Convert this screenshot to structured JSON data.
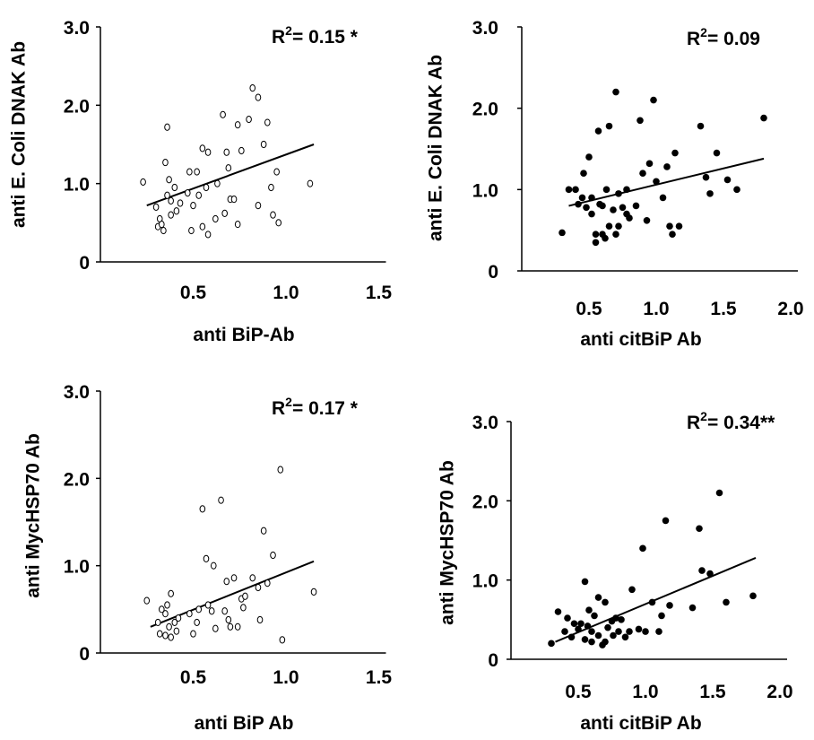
{
  "chart_data": [
    {
      "type": "scatter",
      "marker": "open",
      "xlabel": "anti BiP-Ab",
      "ylabel": "anti E. Coli DNAK Ab",
      "annotation": {
        "prefix": "R",
        "sup": "2",
        "text": "= 0.15 *"
      },
      "xticks": [
        "0.5",
        "1.0",
        "1.5"
      ],
      "yticks": [
        "0",
        "1.0",
        "2.0",
        "3.0"
      ],
      "xlim": [
        0,
        1.5
      ],
      "ylim": [
        0,
        3.0
      ],
      "trendline": {
        "x": [
          0.25,
          1.15
        ],
        "y": [
          0.72,
          1.5
        ]
      },
      "points": [
        [
          0.23,
          1.02
        ],
        [
          0.3,
          0.7
        ],
        [
          0.31,
          0.45
        ],
        [
          0.32,
          0.55
        ],
        [
          0.33,
          0.48
        ],
        [
          0.34,
          0.4
        ],
        [
          0.35,
          1.27
        ],
        [
          0.36,
          0.85
        ],
        [
          0.36,
          1.72
        ],
        [
          0.37,
          1.05
        ],
        [
          0.38,
          0.6
        ],
        [
          0.38,
          0.78
        ],
        [
          0.4,
          0.95
        ],
        [
          0.41,
          0.65
        ],
        [
          0.43,
          0.75
        ],
        [
          0.47,
          0.88
        ],
        [
          0.48,
          1.15
        ],
        [
          0.49,
          0.4
        ],
        [
          0.5,
          0.72
        ],
        [
          0.52,
          1.15
        ],
        [
          0.53,
          0.85
        ],
        [
          0.55,
          1.45
        ],
        [
          0.55,
          0.45
        ],
        [
          0.57,
          0.95
        ],
        [
          0.58,
          1.4
        ],
        [
          0.58,
          0.35
        ],
        [
          0.62,
          0.55
        ],
        [
          0.63,
          1.0
        ],
        [
          0.66,
          1.88
        ],
        [
          0.67,
          0.62
        ],
        [
          0.68,
          1.4
        ],
        [
          0.69,
          1.2
        ],
        [
          0.7,
          0.8
        ],
        [
          0.72,
          0.8
        ],
        [
          0.74,
          1.75
        ],
        [
          0.74,
          0.48
        ],
        [
          0.76,
          1.42
        ],
        [
          0.8,
          1.82
        ],
        [
          0.82,
          2.22
        ],
        [
          0.85,
          2.1
        ],
        [
          0.85,
          0.72
        ],
        [
          0.88,
          1.5
        ],
        [
          0.9,
          1.78
        ],
        [
          0.92,
          0.95
        ],
        [
          0.93,
          0.6
        ],
        [
          0.95,
          1.15
        ],
        [
          0.96,
          0.5
        ],
        [
          1.13,
          1.0
        ]
      ]
    },
    {
      "type": "scatter",
      "marker": "filled",
      "xlabel": "anti citBiP Ab",
      "ylabel": "anti E. Coli DNAK Ab",
      "annotation": {
        "prefix": "R",
        "sup": "2",
        "text": "= 0.09"
      },
      "xticks": [
        "0.5",
        "1.0",
        "1.5",
        "2.0"
      ],
      "yticks": [
        "0",
        "1.0",
        "2.0",
        "3.0"
      ],
      "xlim": [
        0,
        2.0
      ],
      "ylim": [
        0,
        3.0
      ],
      "trendline": {
        "x": [
          0.35,
          1.8
        ],
        "y": [
          0.8,
          1.38
        ]
      },
      "points": [
        [
          0.3,
          0.47
        ],
        [
          0.35,
          1.0
        ],
        [
          0.4,
          1.0
        ],
        [
          0.42,
          0.82
        ],
        [
          0.45,
          0.9
        ],
        [
          0.46,
          1.2
        ],
        [
          0.48,
          0.78
        ],
        [
          0.5,
          1.4
        ],
        [
          0.52,
          0.9
        ],
        [
          0.52,
          0.7
        ],
        [
          0.55,
          0.45
        ],
        [
          0.55,
          0.35
        ],
        [
          0.57,
          1.72
        ],
        [
          0.58,
          0.82
        ],
        [
          0.6,
          0.45
        ],
        [
          0.6,
          0.8
        ],
        [
          0.62,
          0.4
        ],
        [
          0.63,
          1.0
        ],
        [
          0.65,
          1.78
        ],
        [
          0.65,
          0.55
        ],
        [
          0.68,
          0.75
        ],
        [
          0.7,
          0.45
        ],
        [
          0.7,
          2.2
        ],
        [
          0.72,
          0.55
        ],
        [
          0.72,
          0.95
        ],
        [
          0.75,
          0.78
        ],
        [
          0.78,
          0.7
        ],
        [
          0.78,
          1.0
        ],
        [
          0.8,
          0.65
        ],
        [
          0.85,
          0.8
        ],
        [
          0.88,
          1.85
        ],
        [
          0.9,
          1.2
        ],
        [
          0.93,
          0.62
        ],
        [
          0.95,
          1.32
        ],
        [
          0.98,
          2.1
        ],
        [
          1.0,
          1.1
        ],
        [
          1.05,
          0.9
        ],
        [
          1.08,
          1.28
        ],
        [
          1.1,
          0.55
        ],
        [
          1.12,
          0.45
        ],
        [
          1.14,
          1.45
        ],
        [
          1.17,
          0.55
        ],
        [
          1.33,
          1.78
        ],
        [
          1.37,
          1.15
        ],
        [
          1.4,
          0.95
        ],
        [
          1.45,
          1.45
        ],
        [
          1.53,
          1.12
        ],
        [
          1.6,
          1.0
        ],
        [
          1.8,
          1.88
        ]
      ]
    },
    {
      "type": "scatter",
      "marker": "open",
      "xlabel": "anti BiP Ab",
      "ylabel": "anti MycHSP70 Ab",
      "annotation": {
        "prefix": "R",
        "sup": "2",
        "text": "= 0.17 *"
      },
      "xticks": [
        "0.5",
        "1.0",
        "1.5"
      ],
      "yticks": [
        "0",
        "1.0",
        "2.0",
        "3.0"
      ],
      "xlim": [
        0,
        1.5
      ],
      "ylim": [
        0,
        3.0
      ],
      "trendline": {
        "x": [
          0.27,
          1.15
        ],
        "y": [
          0.3,
          1.05
        ]
      },
      "points": [
        [
          0.25,
          0.6
        ],
        [
          0.31,
          0.35
        ],
        [
          0.32,
          0.22
        ],
        [
          0.33,
          0.5
        ],
        [
          0.35,
          0.45
        ],
        [
          0.35,
          0.2
        ],
        [
          0.36,
          0.55
        ],
        [
          0.37,
          0.3
        ],
        [
          0.38,
          0.68
        ],
        [
          0.38,
          0.18
        ],
        [
          0.4,
          0.35
        ],
        [
          0.41,
          0.25
        ],
        [
          0.42,
          0.4
        ],
        [
          0.48,
          0.45
        ],
        [
          0.5,
          0.22
        ],
        [
          0.52,
          0.35
        ],
        [
          0.53,
          0.5
        ],
        [
          0.55,
          1.65
        ],
        [
          0.57,
          1.08
        ],
        [
          0.58,
          0.55
        ],
        [
          0.6,
          0.48
        ],
        [
          0.61,
          1.0
        ],
        [
          0.62,
          0.28
        ],
        [
          0.65,
          1.75
        ],
        [
          0.67,
          0.48
        ],
        [
          0.68,
          0.82
        ],
        [
          0.69,
          0.38
        ],
        [
          0.7,
          0.3
        ],
        [
          0.72,
          0.86
        ],
        [
          0.74,
          0.3
        ],
        [
          0.76,
          0.62
        ],
        [
          0.77,
          0.52
        ],
        [
          0.78,
          0.65
        ],
        [
          0.82,
          0.86
        ],
        [
          0.85,
          0.75
        ],
        [
          0.86,
          0.38
        ],
        [
          0.88,
          1.4
        ],
        [
          0.9,
          0.8
        ],
        [
          0.93,
          1.12
        ],
        [
          0.97,
          2.1
        ],
        [
          0.98,
          0.15
        ],
        [
          1.15,
          0.7
        ]
      ]
    },
    {
      "type": "scatter",
      "marker": "filled",
      "xlabel": "anti citBiP Ab",
      "ylabel": "anti MycHSP70 Ab",
      "annotation": {
        "prefix": "R",
        "sup": "2",
        "text": "= 0.34**"
      },
      "xticks": [
        "0.5",
        "1.0",
        "1.5",
        "2.0"
      ],
      "yticks": [
        "0",
        "1.0",
        "2.0",
        "3.0"
      ],
      "xlim": [
        0,
        2.0
      ],
      "ylim": [
        0,
        3.0
      ],
      "trendline": {
        "x": [
          0.33,
          1.82
        ],
        "y": [
          0.22,
          1.28
        ]
      },
      "points": [
        [
          0.3,
          0.2
        ],
        [
          0.35,
          0.6
        ],
        [
          0.4,
          0.35
        ],
        [
          0.42,
          0.52
        ],
        [
          0.45,
          0.28
        ],
        [
          0.47,
          0.45
        ],
        [
          0.5,
          0.38
        ],
        [
          0.52,
          0.45
        ],
        [
          0.55,
          0.98
        ],
        [
          0.55,
          0.25
        ],
        [
          0.57,
          0.42
        ],
        [
          0.58,
          0.62
        ],
        [
          0.6,
          0.35
        ],
        [
          0.6,
          0.22
        ],
        [
          0.62,
          0.55
        ],
        [
          0.65,
          0.3
        ],
        [
          0.65,
          0.78
        ],
        [
          0.68,
          0.18
        ],
        [
          0.7,
          0.22
        ],
        [
          0.7,
          0.72
        ],
        [
          0.72,
          0.4
        ],
        [
          0.75,
          0.48
        ],
        [
          0.76,
          0.3
        ],
        [
          0.78,
          0.52
        ],
        [
          0.8,
          0.35
        ],
        [
          0.82,
          0.5
        ],
        [
          0.85,
          0.28
        ],
        [
          0.88,
          0.35
        ],
        [
          0.9,
          0.88
        ],
        [
          0.95,
          0.38
        ],
        [
          0.98,
          1.4
        ],
        [
          1.0,
          0.35
        ],
        [
          1.05,
          0.72
        ],
        [
          1.1,
          0.35
        ],
        [
          1.12,
          0.55
        ],
        [
          1.15,
          1.75
        ],
        [
          1.18,
          0.68
        ],
        [
          1.35,
          0.65
        ],
        [
          1.4,
          1.65
        ],
        [
          1.42,
          1.12
        ],
        [
          1.48,
          1.08
        ],
        [
          1.55,
          2.1
        ],
        [
          1.6,
          0.72
        ],
        [
          1.8,
          0.8
        ]
      ]
    }
  ]
}
